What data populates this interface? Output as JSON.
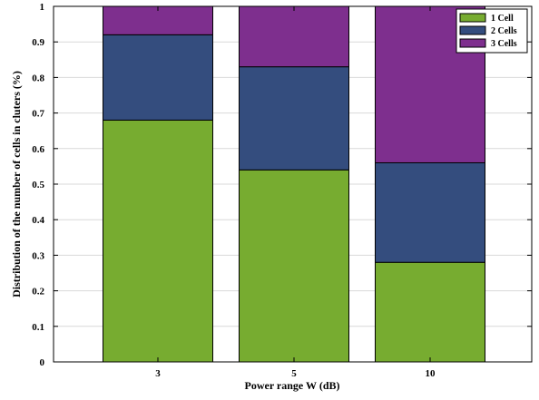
{
  "chart_data": {
    "type": "bar",
    "stacked": true,
    "categories": [
      "3",
      "5",
      "10"
    ],
    "series": [
      {
        "name": "1 Cell",
        "values": [
          0.68,
          0.54,
          0.28
        ],
        "color": "#77ac30"
      },
      {
        "name": "2 Cells",
        "values": [
          0.24,
          0.29,
          0.28
        ],
        "color": "#344d7e"
      },
      {
        "name": "3 Cells",
        "values": [
          0.08,
          0.17,
          0.44
        ],
        "color": "#7e2f8e"
      }
    ],
    "xlabel": "Power range W (dB)",
    "ylabel": "Distribution of the number of cells in cluters (%)",
    "ylim": [
      0,
      1
    ],
    "yticks": [
      "0",
      "0.1",
      "0.2",
      "0.3",
      "0.4",
      "0.5",
      "0.6",
      "0.7",
      "0.8",
      "0.9",
      "1"
    ],
    "grid": true,
    "legend_position": "top-right"
  }
}
